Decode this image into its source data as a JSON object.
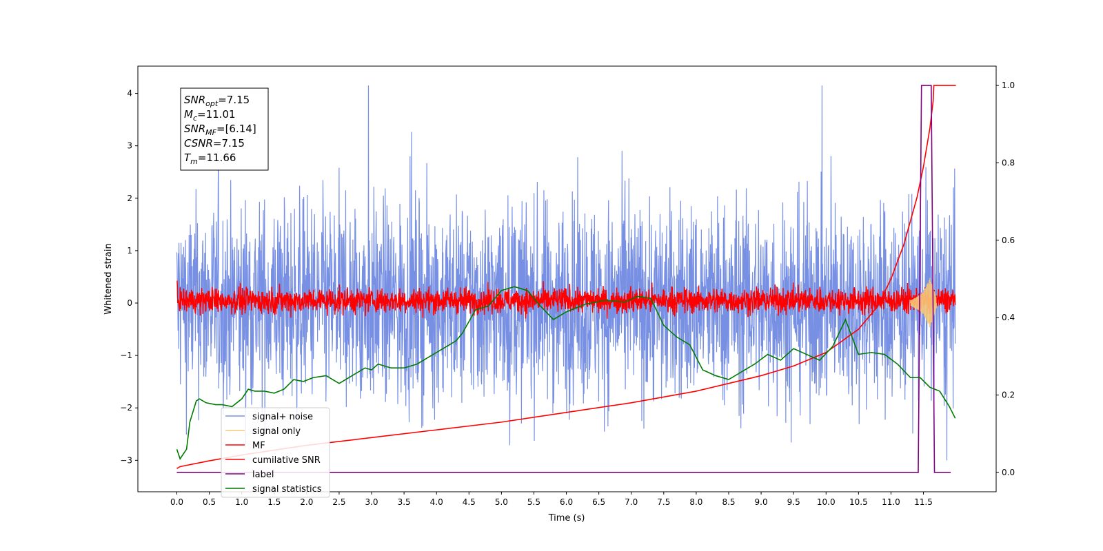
{
  "chart_data": {
    "type": "line",
    "xlabel": "Time (s)",
    "ylabel": "Whitened strain",
    "xlim": [
      -0.6,
      12.62
    ],
    "ylim": [
      -3.6,
      4.52
    ],
    "y2lim": [
      -0.05,
      1.05
    ],
    "xticks": [
      "0.0",
      "0.5",
      "1.0",
      "1.5",
      "2.0",
      "2.5",
      "3.0",
      "3.5",
      "4.0",
      "4.5",
      "5.0",
      "5.5",
      "6.0",
      "6.5",
      "7.0",
      "7.5",
      "8.0",
      "8.5",
      "9.0",
      "9.5",
      "10.0",
      "10.5",
      "11.0",
      "11.5"
    ],
    "yticks": [
      "4",
      "3",
      "2",
      "1",
      "0",
      "−1",
      "−2",
      "−3"
    ],
    "y2ticks": [
      "1.0",
      "0.8",
      "0.6",
      "0.4",
      "0.2",
      "0.0"
    ],
    "grid": false,
    "legend_position": "lower-left",
    "legend": [
      {
        "label": "signal+ noise",
        "color": "#7890e4"
      },
      {
        "label": "signal only",
        "color": "#f5c878"
      },
      {
        "label": "MF",
        "color": "#ff0000"
      },
      {
        "label": "cumilative SNR",
        "color": "#ff0000"
      },
      {
        "label": "label",
        "color": "#800080"
      },
      {
        "label": "signal statistics",
        "color": "#007a00"
      }
    ],
    "annotation": [
      {
        "base": "SNR",
        "sub": "opt",
        "rest": "=7.15"
      },
      {
        "base": "M",
        "sub": "c",
        "rest": "=11.01"
      },
      {
        "base": "SNR",
        "sub": "MF",
        "rest": "=[6.14]"
      },
      {
        "base": "CSNR",
        "sub": "",
        "rest": "=7.15"
      },
      {
        "base": "T",
        "sub": "m",
        "rest": "=11.66"
      }
    ],
    "series": [
      {
        "name": "signal+ noise",
        "axis": "left",
        "color": "#7890e4",
        "description": "noisy whitened strain oscillating roughly between -2.5 and 2.5, extremes -3.2 and 4.2",
        "x_range": [
          0.0,
          11.99
        ],
        "band": [
          -2.3,
          2.4
        ]
      },
      {
        "name": "MF",
        "axis": "left",
        "color": "#ff0000",
        "x_range": [
          0.0,
          11.99
        ],
        "band": [
          -0.3,
          0.4
        ]
      },
      {
        "name": "signal only",
        "axis": "left",
        "color": "#f5c878",
        "x": [
          11.3,
          11.4,
          11.5,
          11.55,
          11.6,
          11.65,
          11.7
        ],
        "y": [
          0.05,
          0.12,
          0.22,
          0.35,
          0.48,
          0.3,
          0.1
        ]
      },
      {
        "name": "cumilative SNR",
        "axis": "right",
        "color": "#ff0000",
        "x": [
          0.0,
          0.05,
          0.5,
          1.0,
          2.0,
          3.0,
          4.0,
          5.0,
          6.0,
          7.0,
          8.0,
          8.5,
          9.0,
          9.5,
          10.0,
          10.5,
          10.8,
          11.0,
          11.2,
          11.4,
          11.5,
          11.6,
          11.65,
          11.66,
          12.0
        ],
        "y": [
          0.01,
          0.015,
          0.03,
          0.045,
          0.07,
          0.09,
          0.11,
          0.13,
          0.155,
          0.18,
          0.21,
          0.23,
          0.25,
          0.275,
          0.31,
          0.37,
          0.43,
          0.5,
          0.59,
          0.71,
          0.79,
          0.89,
          0.96,
          1.0,
          1.0
        ]
      },
      {
        "name": "label",
        "axis": "right",
        "color": "#800080",
        "x": [
          0.0,
          11.42,
          11.47,
          11.62,
          11.67,
          11.92
        ],
        "y": [
          0.0,
          0.0,
          1.0,
          1.0,
          0.0,
          0.0
        ]
      },
      {
        "name": "signal statistics",
        "axis": "right",
        "color": "#007a00",
        "x": [
          0.0,
          0.05,
          0.15,
          0.2,
          0.3,
          0.35,
          0.45,
          0.6,
          0.7,
          0.85,
          1.0,
          1.1,
          1.2,
          1.35,
          1.5,
          1.65,
          1.8,
          1.95,
          2.1,
          2.3,
          2.5,
          2.7,
          2.9,
          3.0,
          3.1,
          3.3,
          3.5,
          3.7,
          3.9,
          4.1,
          4.3,
          4.4,
          4.6,
          4.8,
          5.0,
          5.2,
          5.4,
          5.6,
          5.8,
          6.0,
          6.3,
          6.6,
          6.9,
          7.1,
          7.3,
          7.5,
          7.7,
          7.9,
          8.1,
          8.3,
          8.5,
          8.7,
          8.9,
          9.1,
          9.3,
          9.5,
          9.7,
          9.9,
          10.1,
          10.3,
          10.5,
          10.7,
          10.9,
          11.1,
          11.3,
          11.45,
          11.6,
          11.75,
          11.9,
          11.99
        ],
        "y": [
          0.06,
          0.035,
          0.06,
          0.13,
          0.185,
          0.19,
          0.18,
          0.175,
          0.175,
          0.17,
          0.19,
          0.215,
          0.21,
          0.21,
          0.205,
          0.215,
          0.24,
          0.235,
          0.245,
          0.25,
          0.23,
          0.25,
          0.27,
          0.265,
          0.28,
          0.27,
          0.27,
          0.28,
          0.3,
          0.32,
          0.34,
          0.36,
          0.42,
          0.43,
          0.47,
          0.48,
          0.47,
          0.43,
          0.395,
          0.415,
          0.435,
          0.445,
          0.44,
          0.455,
          0.45,
          0.38,
          0.35,
          0.33,
          0.265,
          0.25,
          0.24,
          0.26,
          0.28,
          0.305,
          0.29,
          0.32,
          0.305,
          0.29,
          0.325,
          0.395,
          0.305,
          0.31,
          0.305,
          0.28,
          0.245,
          0.245,
          0.22,
          0.21,
          0.17,
          0.14
        ]
      }
    ]
  }
}
